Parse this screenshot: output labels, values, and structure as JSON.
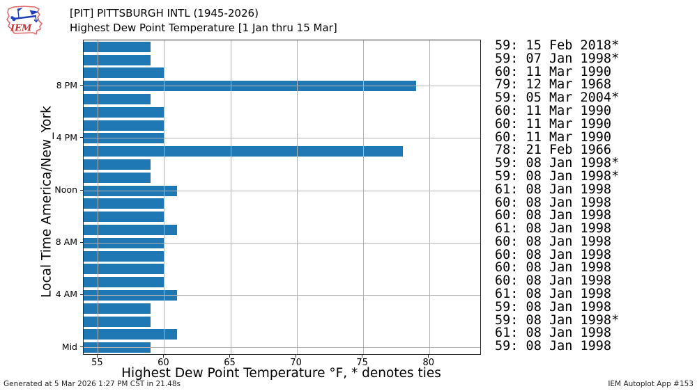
{
  "header": {
    "title": "[PIT] PITTSBURGH INTL (1945-2026)",
    "subtitle": "Highest Dew Point Temperature [1 Jan thru 15 Mar]",
    "logo_text": "IEM"
  },
  "footer": {
    "left": "Generated at 5 Mar 2026 1:27 PM CST in 21.48s",
    "right": "IEM Autoplot App #153"
  },
  "chart_data": {
    "type": "bar",
    "orientation": "horizontal",
    "title": "[PIT] PITTSBURGH INTL (1945-2026) — Highest Dew Point Temperature [1 Jan thru 15 Mar]",
    "xlabel": "Highest Dew Point Temperature °F, * denotes ties",
    "ylabel": "Local Time America/New_York",
    "xlim": [
      53.93,
      83.85
    ],
    "xticks": [
      55,
      60,
      65,
      70,
      75,
      80
    ],
    "grid": true,
    "legend_position": "none",
    "bar_color": "#1f77b4",
    "grid_color": "#b4b4b4",
    "rows": [
      {
        "value": 59,
        "ytick": "",
        "annotation": "59: 15 Feb 2018*"
      },
      {
        "value": 59,
        "ytick": "",
        "annotation": "59: 07 Jan 1998*"
      },
      {
        "value": 60,
        "ytick": "",
        "annotation": "60: 11 Mar 1990"
      },
      {
        "value": 79,
        "ytick": "8 PM",
        "annotation": "79: 12 Mar 1968"
      },
      {
        "value": 59,
        "ytick": "",
        "annotation": "59: 05 Mar 2004*"
      },
      {
        "value": 60,
        "ytick": "",
        "annotation": "60: 11 Mar 1990"
      },
      {
        "value": 60,
        "ytick": "",
        "annotation": "60: 11 Mar 1990"
      },
      {
        "value": 60,
        "ytick": "4 PM",
        "annotation": "60: 11 Mar 1990"
      },
      {
        "value": 78,
        "ytick": "",
        "annotation": "78: 21 Feb 1966"
      },
      {
        "value": 59,
        "ytick": "",
        "annotation": "59: 08 Jan 1998*"
      },
      {
        "value": 59,
        "ytick": "",
        "annotation": "59: 08 Jan 1998*"
      },
      {
        "value": 61,
        "ytick": "Noon",
        "annotation": "61: 08 Jan 1998"
      },
      {
        "value": 60,
        "ytick": "",
        "annotation": "60: 08 Jan 1998"
      },
      {
        "value": 60,
        "ytick": "",
        "annotation": "60: 08 Jan 1998"
      },
      {
        "value": 61,
        "ytick": "",
        "annotation": "61: 08 Jan 1998"
      },
      {
        "value": 60,
        "ytick": "8 AM",
        "annotation": "60: 08 Jan 1998"
      },
      {
        "value": 60,
        "ytick": "",
        "annotation": "60: 08 Jan 1998"
      },
      {
        "value": 60,
        "ytick": "",
        "annotation": "60: 08 Jan 1998"
      },
      {
        "value": 60,
        "ytick": "",
        "annotation": "60: 08 Jan 1998"
      },
      {
        "value": 61,
        "ytick": "4 AM",
        "annotation": "61: 08 Jan 1998"
      },
      {
        "value": 59,
        "ytick": "",
        "annotation": "59: 08 Jan 1998"
      },
      {
        "value": 59,
        "ytick": "",
        "annotation": "59: 08 Jan 1998*"
      },
      {
        "value": 61,
        "ytick": "",
        "annotation": "61: 08 Jan 1998"
      },
      {
        "value": 59,
        "ytick": "Mid",
        "annotation": "59: 08 Jan 1998"
      }
    ]
  }
}
